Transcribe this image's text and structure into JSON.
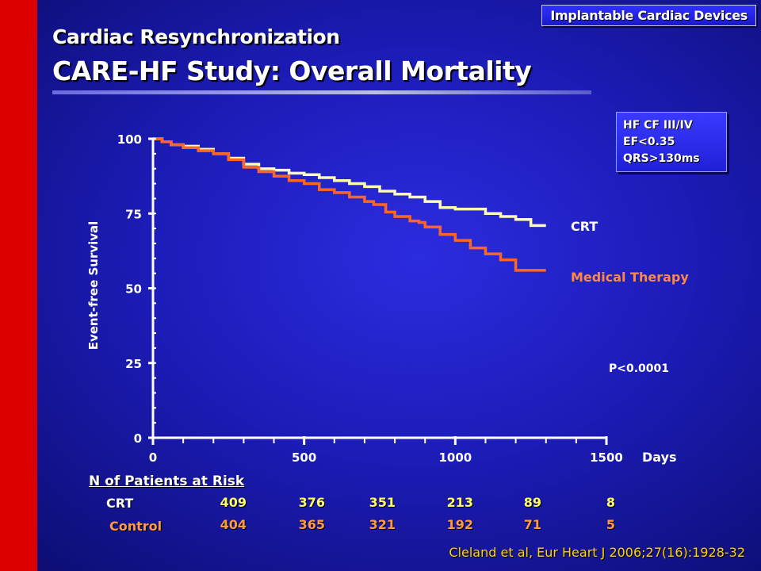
{
  "header": {
    "topic_badge": "Implantable Cardiac Devices",
    "title_line1": "Cardiac Resynchronization",
    "title_line2": "CARE-HF Study: Overall Mortality"
  },
  "info_box": [
    "HF CF III/IV",
    "EF<0.35",
    "QRS>130ms"
  ],
  "pvalue": "P<0.0001",
  "citation": "Cleland et al, Eur Heart J 2006;27(16):1928-32",
  "risk_table": {
    "heading": "N of Patients at Risk",
    "rows": [
      {
        "label": "CRT",
        "values": [
          "409",
          "376",
          "351",
          "213",
          "89",
          "8"
        ],
        "color": "#ffff66"
      },
      {
        "label": "Control",
        "values": [
          "404",
          "365",
          "321",
          "192",
          "71",
          "5"
        ],
        "color": "#ff9944"
      }
    ]
  },
  "chart_data": {
    "type": "line",
    "xlabel": "Days",
    "ylabel": "Event-free Survival",
    "xlim": [
      0,
      1500
    ],
    "ylim": [
      0,
      100
    ],
    "xticks": [
      0,
      500,
      1000,
      1500
    ],
    "yticks": [
      0,
      25,
      50,
      75,
      100
    ],
    "series": [
      {
        "name": "CRT",
        "color": "#fffdb0",
        "points": [
          [
            0,
            100
          ],
          [
            30,
            99
          ],
          [
            60,
            98
          ],
          [
            100,
            97.5
          ],
          [
            150,
            96.5
          ],
          [
            200,
            95
          ],
          [
            250,
            93.5
          ],
          [
            300,
            91.5
          ],
          [
            350,
            90
          ],
          [
            400,
            89.5
          ],
          [
            450,
            88.5
          ],
          [
            500,
            88
          ],
          [
            550,
            87
          ],
          [
            600,
            86
          ],
          [
            650,
            85
          ],
          [
            700,
            84
          ],
          [
            750,
            82.5
          ],
          [
            800,
            81.5
          ],
          [
            850,
            80.5
          ],
          [
            900,
            79
          ],
          [
            950,
            77
          ],
          [
            1000,
            76.5
          ],
          [
            1050,
            76.5
          ],
          [
            1100,
            75
          ],
          [
            1150,
            74
          ],
          [
            1200,
            73
          ],
          [
            1250,
            71
          ],
          [
            1300,
            71
          ]
        ]
      },
      {
        "name": "Medical Therapy",
        "color": "#ff6622",
        "points": [
          [
            0,
            100
          ],
          [
            30,
            99
          ],
          [
            60,
            98
          ],
          [
            100,
            97
          ],
          [
            150,
            96
          ],
          [
            200,
            95
          ],
          [
            250,
            93
          ],
          [
            300,
            90.5
          ],
          [
            350,
            89
          ],
          [
            400,
            87.5
          ],
          [
            450,
            86
          ],
          [
            500,
            85
          ],
          [
            550,
            83
          ],
          [
            600,
            82
          ],
          [
            650,
            80.5
          ],
          [
            700,
            79
          ],
          [
            730,
            78
          ],
          [
            770,
            75.5
          ],
          [
            800,
            74
          ],
          [
            850,
            72.5
          ],
          [
            880,
            72
          ],
          [
            900,
            70.5
          ],
          [
            950,
            68
          ],
          [
            1000,
            66
          ],
          [
            1050,
            63.5
          ],
          [
            1100,
            61.5
          ],
          [
            1150,
            59.5
          ],
          [
            1200,
            56
          ],
          [
            1250,
            56
          ],
          [
            1300,
            56
          ]
        ]
      }
    ]
  }
}
